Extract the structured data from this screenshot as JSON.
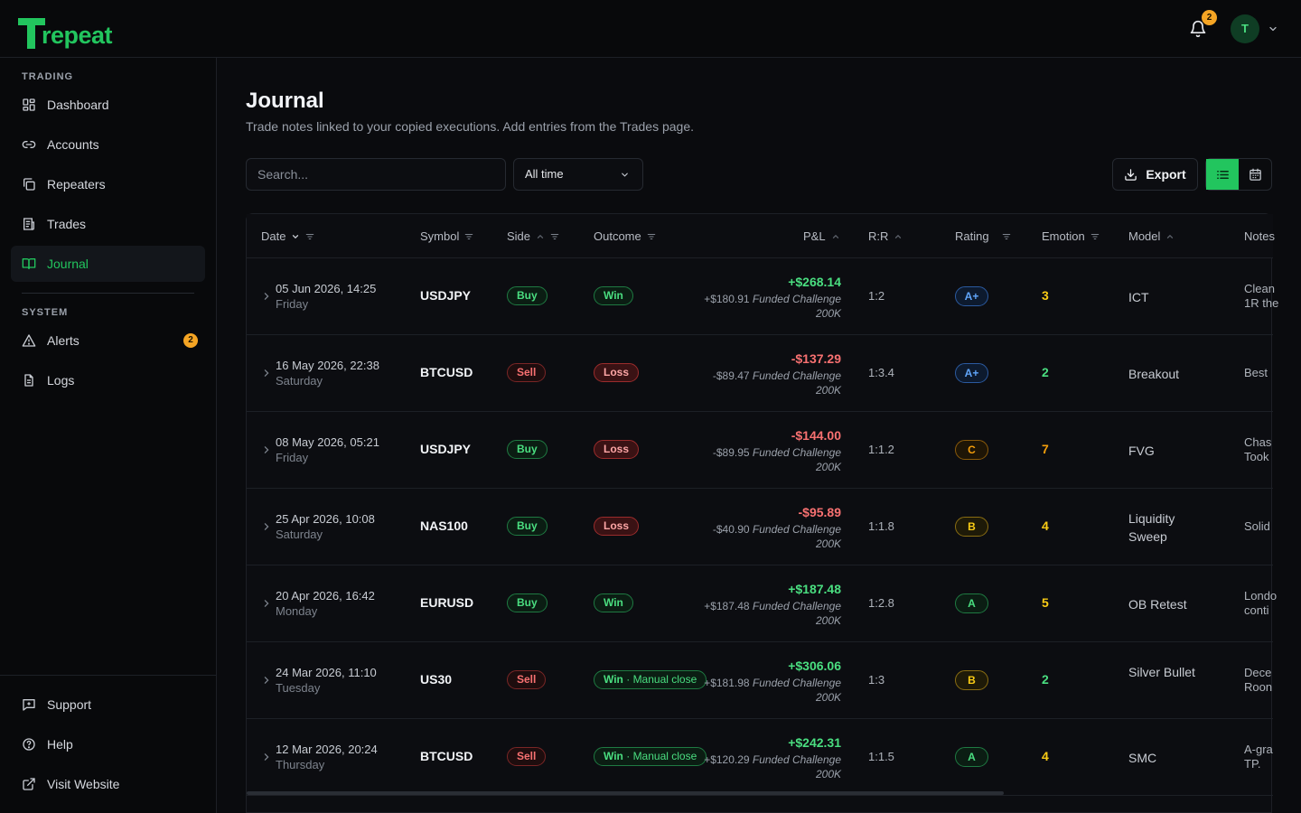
{
  "brand": {
    "name": "repeat",
    "accent": "#22c55e"
  },
  "header": {
    "notification_count": "2",
    "avatar_initial": "T"
  },
  "sidebar": {
    "trading_label": "TRADING",
    "system_label": "SYSTEM",
    "trading_items": [
      {
        "label": "Dashboard",
        "icon": "dashboard-icon"
      },
      {
        "label": "Accounts",
        "icon": "link-icon"
      },
      {
        "label": "Repeaters",
        "icon": "copy-icon"
      },
      {
        "label": "Trades",
        "icon": "receipt-icon"
      },
      {
        "label": "Journal",
        "icon": "book-icon",
        "active": true
      }
    ],
    "system_items": [
      {
        "label": "Alerts",
        "icon": "alert-triangle-icon",
        "badge": "2"
      },
      {
        "label": "Logs",
        "icon": "file-icon"
      }
    ],
    "bottom_items": [
      {
        "label": "Support",
        "icon": "message-icon"
      },
      {
        "label": "Help",
        "icon": "help-circle-icon"
      },
      {
        "label": "Visit Website",
        "icon": "external-link-icon"
      }
    ]
  },
  "page": {
    "title": "Journal",
    "subtitle": "Trade notes linked to your copied executions. Add entries from the Trades page.",
    "search_placeholder": "Search...",
    "time_filter": "All time",
    "export_label": "Export"
  },
  "table": {
    "columns": {
      "date": "Date",
      "symbol": "Symbol",
      "side": "Side",
      "outcome": "Outcome",
      "pnl": "P&L",
      "rr": "R:R",
      "rating": "Rating",
      "emotion": "Emotion",
      "model": "Model",
      "notes": "Notes"
    },
    "rows": [
      {
        "date": "05 Jun 2026, 14:25",
        "day": "Friday",
        "symbol": "USDJPY",
        "side": "Buy",
        "outcome": "Win",
        "outcome_extra": "",
        "pnl": "+$268.14",
        "pnl_account": "+$180.91",
        "account": "Funded Challenge",
        "account_size": "200K",
        "rr": "1:2",
        "rating": "A+",
        "emotion": "3",
        "model": "ICT",
        "notes": "Clean 1R the"
      },
      {
        "date": "16 May 2026, 22:38",
        "day": "Saturday",
        "symbol": "BTCUSD",
        "side": "Sell",
        "outcome": "Loss",
        "outcome_extra": "",
        "pnl": "-$137.29",
        "pnl_account": "-$89.47",
        "account": "Funded Challenge",
        "account_size": "200K",
        "rr": "1:3.4",
        "rating": "A+",
        "emotion": "2",
        "model": "Breakout",
        "notes": "Best"
      },
      {
        "date": "08 May 2026, 05:21",
        "day": "Friday",
        "symbol": "USDJPY",
        "side": "Buy",
        "outcome": "Loss",
        "outcome_extra": "",
        "pnl": "-$144.00",
        "pnl_account": "-$89.95",
        "account": "Funded Challenge",
        "account_size": "200K",
        "rr": "1:1.2",
        "rating": "C",
        "emotion": "7",
        "model": "FVG",
        "notes": "Chas Took"
      },
      {
        "date": "25 Apr 2026, 10:08",
        "day": "Saturday",
        "symbol": "NAS100",
        "side": "Buy",
        "outcome": "Loss",
        "outcome_extra": "",
        "pnl": "-$95.89",
        "pnl_account": "-$40.90",
        "account": "Funded Challenge",
        "account_size": "200K",
        "rr": "1:1.8",
        "rating": "B",
        "emotion": "4",
        "model": "Liquidity Sweep",
        "notes": "Solid"
      },
      {
        "date": "20 Apr 2026, 16:42",
        "day": "Monday",
        "symbol": "EURUSD",
        "side": "Buy",
        "outcome": "Win",
        "outcome_extra": "",
        "pnl": "+$187.48",
        "pnl_account": "+$187.48",
        "account": "Funded Challenge",
        "account_size": "200K",
        "rr": "1:2.8",
        "rating": "A",
        "emotion": "5",
        "model": "OB Retest",
        "notes": "Londo conti"
      },
      {
        "date": "24 Mar 2026, 11:10",
        "day": "Tuesday",
        "symbol": "US30",
        "side": "Sell",
        "outcome": "Win",
        "outcome_extra": "Manual close",
        "pnl": "+$306.06",
        "pnl_account": "+$181.98",
        "account": "Funded Challenge",
        "account_size": "200K",
        "rr": "1:3",
        "rating": "B",
        "emotion": "2",
        "model": "Silver Bullet",
        "notes": "Dece Roon"
      },
      {
        "date": "12 Mar 2026, 20:24",
        "day": "Thursday",
        "symbol": "BTCUSD",
        "side": "Sell",
        "outcome": "Win",
        "outcome_extra": "Manual close",
        "pnl": "+$242.31",
        "pnl_account": "+$120.29",
        "account": "Funded Challenge",
        "account_size": "200K",
        "rr": "1:1.5",
        "rating": "A",
        "emotion": "4",
        "model": "SMC",
        "notes": "A-gra TP."
      }
    ]
  },
  "colors": {
    "win": "#4ade80",
    "loss": "#f87171",
    "emotion_low": "#4ade80",
    "emotion_mid": "#facc15",
    "emotion_high": "#f59e0b"
  }
}
